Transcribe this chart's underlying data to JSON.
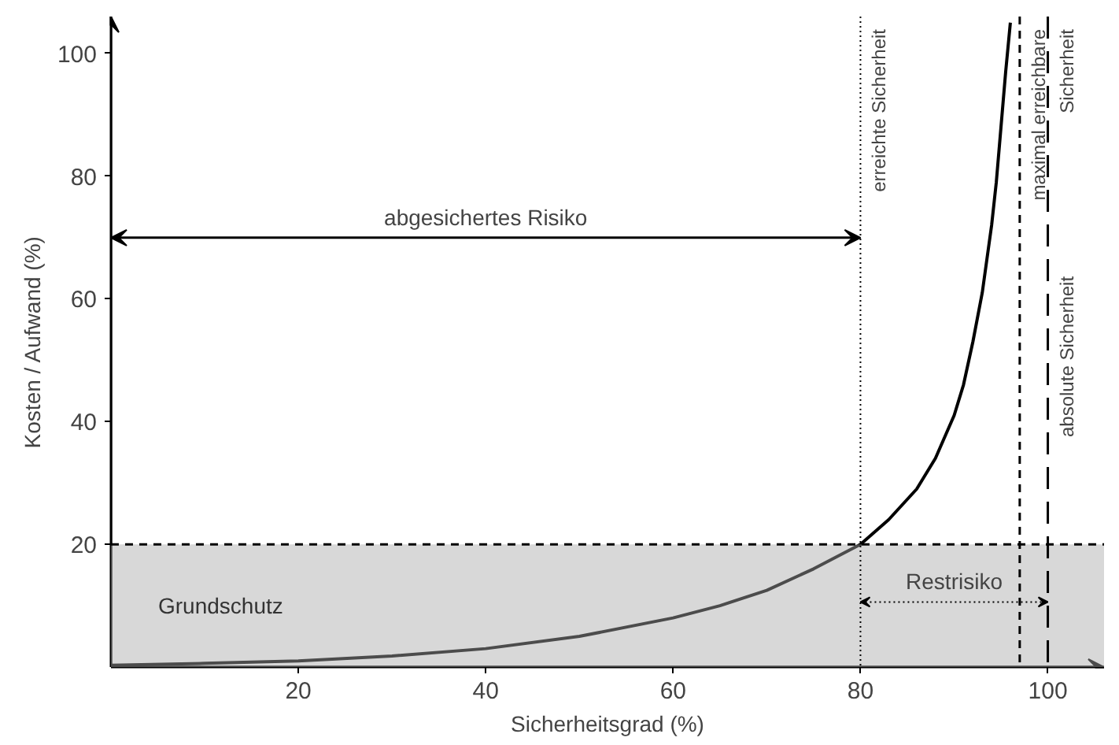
{
  "chart_data": {
    "type": "line",
    "xlabel": "Sicherheitsgrad (%)",
    "ylabel": "Kosten / Aufwand (%)",
    "x": [
      0,
      10,
      20,
      30,
      40,
      50,
      60,
      65,
      70,
      75,
      80,
      83,
      86,
      88,
      90,
      91,
      92,
      93,
      94,
      94.5,
      95,
      95.5,
      96
    ],
    "series": [
      {
        "color": "#000000",
        "values": [
          0.3,
          0.6,
          1,
          1.8,
          3,
          5,
          8,
          10,
          12.5,
          16,
          20,
          24,
          29,
          34,
          41,
          46,
          53,
          61,
          72,
          79,
          88,
          97,
          105
        ]
      }
    ],
    "xlim": [
      0,
      106
    ],
    "ylim": [
      0,
      106
    ],
    "xticks": [
      20,
      40,
      60,
      80,
      100
    ],
    "yticks": [
      20,
      40,
      60,
      80,
      100
    ],
    "grid": false,
    "marker": "none",
    "line_style": "solid",
    "ref_lines": [
      {
        "axis": "x",
        "value": 80,
        "label": "erreichte Sicherheit",
        "line_style": "dotted",
        "color": "#000000"
      },
      {
        "axis": "x",
        "value": 97,
        "label": "maximal erreichbare\nSicherheit",
        "line_style": "dashed",
        "color": "#000000"
      },
      {
        "axis": "x",
        "value": 100,
        "label": "absolute Sicherheit",
        "line_style": "longdash",
        "color": "#000000"
      },
      {
        "axis": "y",
        "value": 20,
        "label": null,
        "line_style": "dashed",
        "color": "#000000"
      }
    ],
    "bands": [
      {
        "axis": "y",
        "from": 0,
        "to": 20,
        "label": "Grundschutz",
        "color": "#a8a8a8"
      }
    ],
    "annotations": [
      "abgesichertes Risiko",
      "Restrisiko"
    ]
  }
}
